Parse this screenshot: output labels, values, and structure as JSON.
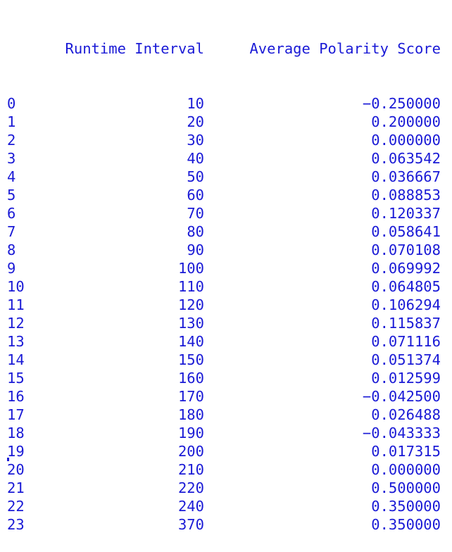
{
  "table": {
    "columns": [
      "Runtime Interval",
      "Average Polarity Score"
    ],
    "rows": [
      {
        "index": "0",
        "runtime": "10",
        "score": "−0.250000"
      },
      {
        "index": "1",
        "runtime": "20",
        "score": "0.200000"
      },
      {
        "index": "2",
        "runtime": "30",
        "score": "0.000000"
      },
      {
        "index": "3",
        "runtime": "40",
        "score": "0.063542"
      },
      {
        "index": "4",
        "runtime": "50",
        "score": "0.036667"
      },
      {
        "index": "5",
        "runtime": "60",
        "score": "0.088853"
      },
      {
        "index": "6",
        "runtime": "70",
        "score": "0.120337"
      },
      {
        "index": "7",
        "runtime": "80",
        "score": "0.058641"
      },
      {
        "index": "8",
        "runtime": "90",
        "score": "0.070108"
      },
      {
        "index": "9",
        "runtime": "100",
        "score": "0.069992"
      },
      {
        "index": "10",
        "runtime": "110",
        "score": "0.064805"
      },
      {
        "index": "11",
        "runtime": "120",
        "score": "0.106294"
      },
      {
        "index": "12",
        "runtime": "130",
        "score": "0.115837"
      },
      {
        "index": "13",
        "runtime": "140",
        "score": "0.071116"
      },
      {
        "index": "14",
        "runtime": "150",
        "score": "0.051374"
      },
      {
        "index": "15",
        "runtime": "160",
        "score": "0.012599"
      },
      {
        "index": "16",
        "runtime": "170",
        "score": "−0.042500"
      },
      {
        "index": "17",
        "runtime": "180",
        "score": "0.026488"
      },
      {
        "index": "18",
        "runtime": "190",
        "score": "−0.043333"
      },
      {
        "index": "19",
        "runtime": "200",
        "score": "0.017315"
      },
      {
        "index": "20",
        "runtime": "210",
        "score": "0.000000"
      },
      {
        "index": "21",
        "runtime": "220",
        "score": "0.500000"
      },
      {
        "index": "22",
        "runtime": "240",
        "score": "0.350000"
      },
      {
        "index": "23",
        "runtime": "370",
        "score": "0.350000"
      }
    ]
  },
  "colors": {
    "text": "#1a1ad6",
    "background": "#ffffff"
  }
}
